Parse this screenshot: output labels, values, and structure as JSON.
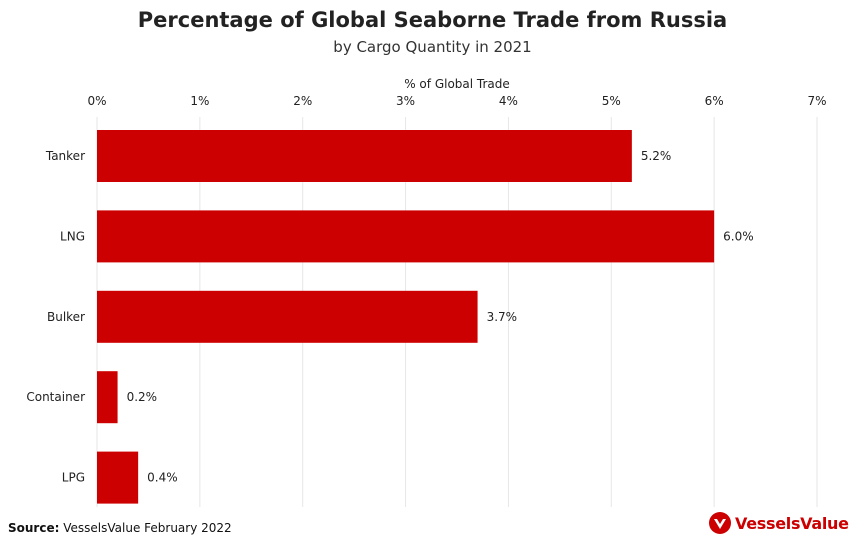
{
  "header": {
    "title": "Percentage of Global Seaborne Trade from Russia",
    "subtitle": "by Cargo Quantity in 2021"
  },
  "footer": {
    "source_label": "Source:",
    "source_text": "VesselsValue February 2022",
    "logo_text": "VesselsValue",
    "logo_icon": "vesselsvalue-logo-icon"
  },
  "colors": {
    "bar": "#cc0000",
    "grid": "#e6e6e6",
    "text": "#222222"
  },
  "chart_data": {
    "type": "bar",
    "orientation": "horizontal",
    "title": "Percentage of Global Seaborne Trade from Russia",
    "subtitle": "by Cargo Quantity in 2021",
    "xlabel": "% of Global Trade",
    "xaxis_position": "top",
    "ylabel": "",
    "categories": [
      "Tanker",
      "LNG",
      "Bulker",
      "Container",
      "LPG"
    ],
    "values": [
      5.2,
      6.0,
      3.7,
      0.2,
      0.4
    ],
    "data_labels": [
      "5.2%",
      "6.0%",
      "3.7%",
      "0.2%",
      "0.4%"
    ],
    "xlim": [
      0,
      7
    ],
    "x_ticks": [
      0,
      1,
      2,
      3,
      4,
      5,
      6,
      7
    ],
    "x_tick_labels": [
      "0%",
      "1%",
      "2%",
      "3%",
      "4%",
      "5%",
      "6%",
      "7%"
    ],
    "grid": true,
    "legend": "none"
  }
}
